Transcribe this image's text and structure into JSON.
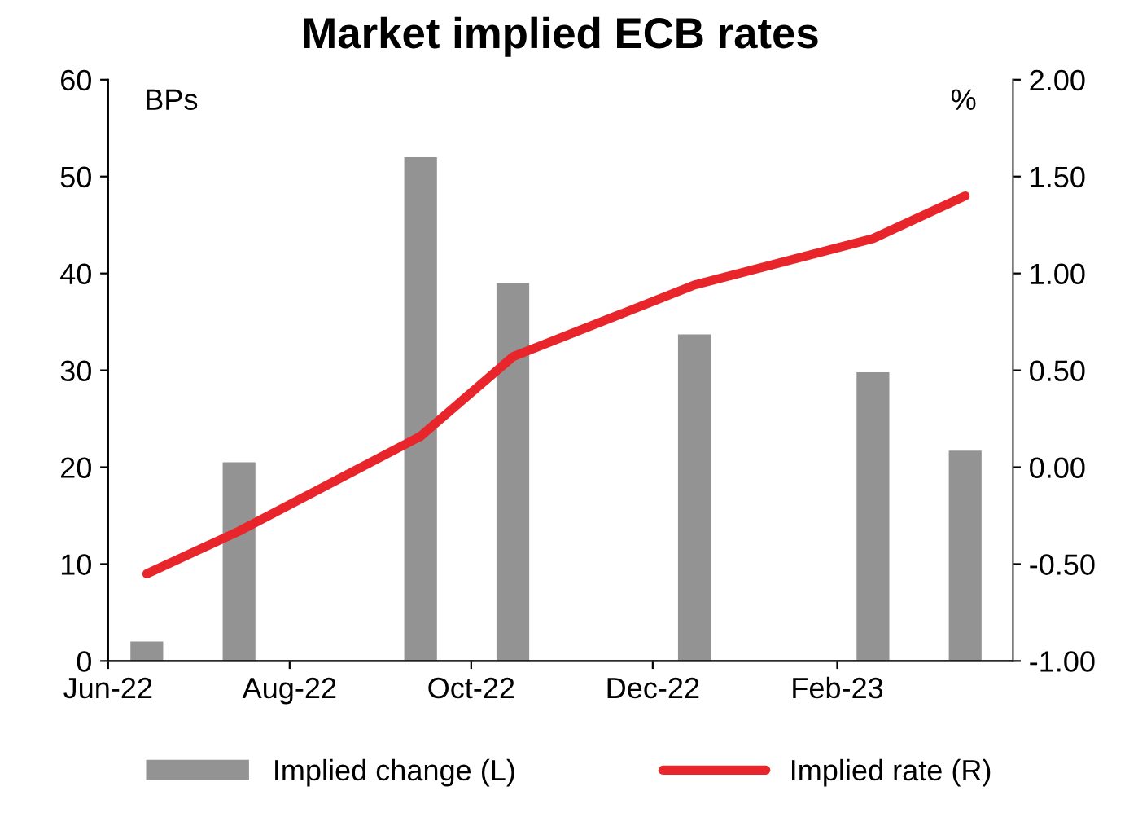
{
  "chart_data": {
    "type": "bar",
    "title": "Market implied ECB rates",
    "ylabel": "BPs",
    "y2label": "%",
    "x": [
      "2022-06-14",
      "2022-07-15",
      "2022-09-14",
      "2022-10-15",
      "2022-12-15",
      "2023-02-13",
      "2023-03-16"
    ],
    "series": [
      {
        "name": "Implied change (L)",
        "color": "#939393",
        "values": [
          2,
          20.5,
          52,
          39,
          33.7,
          29.8,
          21.7
        ]
      },
      {
        "name": "Implied rate (R)",
        "type": "line",
        "axis": "y2",
        "color": "#e8252b",
        "values": [
          -0.55,
          -0.33,
          0.16,
          0.57,
          0.94,
          1.18,
          1.4
        ]
      }
    ],
    "xlim": [
      "2022-06-01",
      "2023-04-01"
    ],
    "xticks": [
      {
        "value": "2022-06-01",
        "label": "Jun-22"
      },
      {
        "value": "2022-08-01",
        "label": "Aug-22"
      },
      {
        "value": "2022-10-01",
        "label": "Oct-22"
      },
      {
        "value": "2022-12-01",
        "label": "Dec-22"
      },
      {
        "value": "2023-02-01",
        "label": "Feb-23"
      }
    ],
    "ylim": [
      0,
      60
    ],
    "yticks": [
      0,
      10,
      20,
      30,
      40,
      50,
      60
    ],
    "y2lim": [
      -1,
      2
    ],
    "y2ticks": [
      {
        "value": -1,
        "label": "-1.00"
      },
      {
        "value": -0.5,
        "label": "-0.50"
      },
      {
        "value": 0,
        "label": "0.00"
      },
      {
        "value": 0.5,
        "label": "0.50"
      },
      {
        "value": 1,
        "label": "1.00"
      },
      {
        "value": 1.5,
        "label": "1.50"
      },
      {
        "value": 2,
        "label": "2.00"
      }
    ],
    "legend": "bottom",
    "grid": false
  }
}
